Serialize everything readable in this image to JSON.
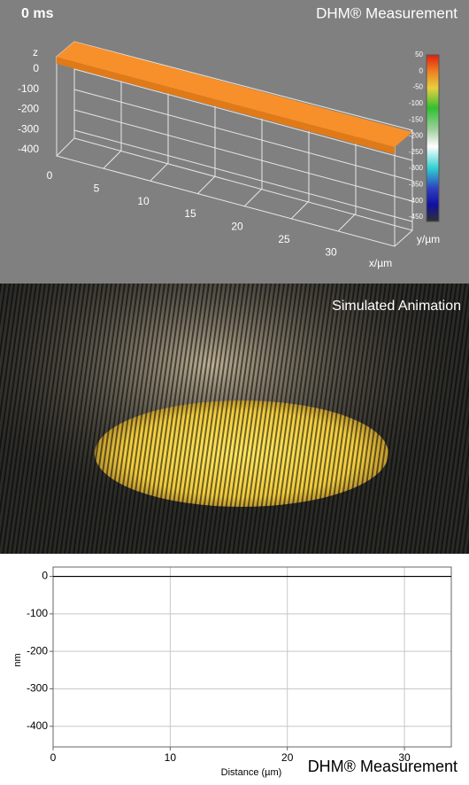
{
  "top_panel": {
    "time_label": "0 ms",
    "title": "DHM® Measurement",
    "z_label": "z",
    "z_ticks": [
      0,
      -100,
      -200,
      -300,
      -400
    ],
    "x_ticks": [
      0,
      5,
      10,
      15,
      20,
      25,
      30
    ],
    "x_label": "x/µm",
    "y_label": "y/µm",
    "colorbar_ticks": [
      50,
      0,
      -50,
      -100,
      -150,
      -200,
      -250,
      -300,
      -350,
      -400,
      -450
    ]
  },
  "middle_panel": {
    "title": "Simulated Animation"
  },
  "chart_data": {
    "type": "line",
    "title": "DHM® Measurement",
    "x_label": "Distance (µm)",
    "y_label": "nm",
    "x": [
      0,
      34
    ],
    "series": [
      {
        "color": "#000000",
        "values": [
          0,
          0
        ]
      }
    ],
    "xlim": [
      0,
      34
    ],
    "ylim": [
      -455,
      25
    ],
    "xticks": [
      0,
      10,
      20,
      30
    ],
    "yticks": [
      0,
      -100,
      -200,
      -300,
      -400
    ],
    "grid": true
  }
}
